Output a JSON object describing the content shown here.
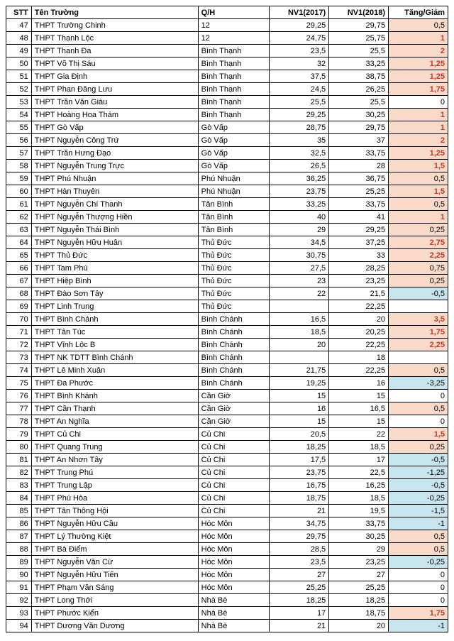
{
  "columns": [
    "STT",
    "Tên Trường",
    "Q/H",
    "NV1(2017)",
    "NV1(2018)",
    "Tăng/Giảm"
  ],
  "colors": {
    "orange_bg": "#f9d9c8",
    "blue_bg": "#c8e4ec",
    "bold_positive": "#c0392b"
  },
  "rows": [
    {
      "stt": 47,
      "name": "THPT Trường Chinh",
      "qh": "12",
      "nv1": "29,25",
      "nv2": "29,75",
      "diff": "0,5",
      "bg": "orange",
      "bold": false
    },
    {
      "stt": 48,
      "name": "THPT Thạnh Lộc",
      "qh": "12",
      "nv1": "24,75",
      "nv2": "25,75",
      "diff": "1",
      "bg": "orange",
      "bold": true
    },
    {
      "stt": 49,
      "name": "THPT Thanh Đa",
      "qh": "Bình Thạnh",
      "nv1": "23,5",
      "nv2": "25,5",
      "diff": "2",
      "bg": "orange",
      "bold": true
    },
    {
      "stt": 50,
      "name": "THPT Võ Thị Sáu",
      "qh": "Bình Thạnh",
      "nv1": "32",
      "nv2": "33,25",
      "diff": "1,25",
      "bg": "orange",
      "bold": true
    },
    {
      "stt": 51,
      "name": "THPT Gia Định",
      "qh": "Bình Thạnh",
      "nv1": "37,5",
      "nv2": "38,75",
      "diff": "1,25",
      "bg": "orange",
      "bold": true
    },
    {
      "stt": 52,
      "name": "THPT Phan Đăng Lưu",
      "qh": "Bình Thạnh",
      "nv1": "24,5",
      "nv2": "26,25",
      "diff": "1,75",
      "bg": "orange",
      "bold": true
    },
    {
      "stt": 53,
      "name": "THPT Trần Văn Giàu",
      "qh": "Bình Thạnh",
      "nv1": "25,5",
      "nv2": "25,5",
      "diff": "0",
      "bg": "",
      "bold": false
    },
    {
      "stt": 54,
      "name": "THPT Hoàng Hoa Thám",
      "qh": "Bình Thạnh",
      "nv1": "29,25",
      "nv2": "30,25",
      "diff": "1",
      "bg": "orange",
      "bold": true
    },
    {
      "stt": 55,
      "name": "THPT Gò Vấp",
      "qh": "Gò Vấp",
      "nv1": "28,75",
      "nv2": "29,75",
      "diff": "1",
      "bg": "orange",
      "bold": true
    },
    {
      "stt": 56,
      "name": "THPT Nguyễn Công Trứ",
      "qh": "Gò Vấp",
      "nv1": "35",
      "nv2": "37",
      "diff": "2",
      "bg": "orange",
      "bold": true
    },
    {
      "stt": 57,
      "name": "THPT Trần Hưng Đạo",
      "qh": "Gò Vấp",
      "nv1": "32,5",
      "nv2": "33,75",
      "diff": "1,25",
      "bg": "orange",
      "bold": true
    },
    {
      "stt": 58,
      "name": "THPT Nguyễn Trung Trực",
      "qh": "Gò Vấp",
      "nv1": "26,5",
      "nv2": "28",
      "diff": "1,5",
      "bg": "orange",
      "bold": true
    },
    {
      "stt": 59,
      "name": "THPT Phú Nhuận",
      "qh": "Phú Nhuận",
      "nv1": "36,25",
      "nv2": "36,75",
      "diff": "0,5",
      "bg": "orange",
      "bold": false
    },
    {
      "stt": 60,
      "name": "THPT Hàn Thuyên",
      "qh": "Phú Nhuận",
      "nv1": "23,75",
      "nv2": "25,25",
      "diff": "1,5",
      "bg": "orange",
      "bold": true
    },
    {
      "stt": 61,
      "name": "THPT Nguyễn Chí Thanh",
      "qh": "Tân Bình",
      "nv1": "33,25",
      "nv2": "33,75",
      "diff": "0,5",
      "bg": "orange",
      "bold": false
    },
    {
      "stt": 62,
      "name": "THPT Nguyễn Thượng Hiền",
      "qh": "Tân Bình",
      "nv1": "40",
      "nv2": "41",
      "diff": "1",
      "bg": "orange",
      "bold": true
    },
    {
      "stt": 63,
      "name": "THPT Nguyễn Thái Bình",
      "qh": "Tân Bình",
      "nv1": "29",
      "nv2": "29,25",
      "diff": "0,25",
      "bg": "orange",
      "bold": false
    },
    {
      "stt": 64,
      "name": "THPT Nguyễn Hữu Huân",
      "qh": "Thủ Đức",
      "nv1": "34,5",
      "nv2": "37,25",
      "diff": "2,75",
      "bg": "orange",
      "bold": true
    },
    {
      "stt": 65,
      "name": "THPT Thủ Đức",
      "qh": "Thủ Đức",
      "nv1": "30,75",
      "nv2": "33",
      "diff": "2,25",
      "bg": "orange",
      "bold": true
    },
    {
      "stt": 66,
      "name": "THPT Tam Phú",
      "qh": "Thủ Đức",
      "nv1": "27,5",
      "nv2": "28,25",
      "diff": "0,75",
      "bg": "orange",
      "bold": false
    },
    {
      "stt": 67,
      "name": "THPT Hiệp Bình",
      "qh": "Thủ Đức",
      "nv1": "23",
      "nv2": "23,25",
      "diff": "0,25",
      "bg": "orange",
      "bold": false
    },
    {
      "stt": 68,
      "name": "THPT Đào Sơn Tây",
      "qh": "Thủ Đức",
      "nv1": "22",
      "nv2": "21,5",
      "diff": "-0,5",
      "bg": "blue",
      "bold": false
    },
    {
      "stt": 69,
      "name": "THPT Linh Trung",
      "qh": "Thủ Đức",
      "nv1": "",
      "nv2": "22,25",
      "diff": "",
      "bg": "",
      "bold": false
    },
    {
      "stt": 70,
      "name": "THPT Bình Chánh",
      "qh": "Bình Chánh",
      "nv1": "16,5",
      "nv2": "20",
      "diff": "3,5",
      "bg": "orange",
      "bold": true
    },
    {
      "stt": 71,
      "name": "THPT Tân Túc",
      "qh": "Bình Chánh",
      "nv1": "18,5",
      "nv2": "20,25",
      "diff": "1,75",
      "bg": "orange",
      "bold": true
    },
    {
      "stt": 72,
      "name": "THPT Vĩnh Lộc B",
      "qh": "Bình Chánh",
      "nv1": "20",
      "nv2": "22,25",
      "diff": "2,25",
      "bg": "orange",
      "bold": true
    },
    {
      "stt": 73,
      "name": "THPT NK TDTT Bình Chánh",
      "qh": "Bình Chánh",
      "nv1": "",
      "nv2": "18",
      "diff": "",
      "bg": "",
      "bold": false
    },
    {
      "stt": 74,
      "name": "THPT Lê Minh Xuân",
      "qh": "Bình Chánh",
      "nv1": "21,75",
      "nv2": "22,25",
      "diff": "0,5",
      "bg": "orange",
      "bold": false
    },
    {
      "stt": 75,
      "name": "THPT Đa Phước",
      "qh": "Bình Chánh",
      "nv1": "19,25",
      "nv2": "16",
      "diff": "-3,25",
      "bg": "blue",
      "bold": false
    },
    {
      "stt": 76,
      "name": "THPT Bình Khánh",
      "qh": "Cần Giờ",
      "nv1": "15",
      "nv2": "15",
      "diff": "0",
      "bg": "",
      "bold": false
    },
    {
      "stt": 77,
      "name": "THPT Cần Thạnh",
      "qh": "Cần Giờ",
      "nv1": "16",
      "nv2": "16,5",
      "diff": "0,5",
      "bg": "orange",
      "bold": false
    },
    {
      "stt": 78,
      "name": "THPT An Nghĩa",
      "qh": "Cần Giờ",
      "nv1": "15",
      "nv2": "15",
      "diff": "0",
      "bg": "",
      "bold": false
    },
    {
      "stt": 79,
      "name": "THPT Củ Chi",
      "qh": "Củ Chi",
      "nv1": "20,5",
      "nv2": "22",
      "diff": "1,5",
      "bg": "orange",
      "bold": true
    },
    {
      "stt": 80,
      "name": "THPT Quang Trung",
      "qh": "Củ Chi",
      "nv1": "18,25",
      "nv2": "18,5",
      "diff": "0,25",
      "bg": "orange",
      "bold": false
    },
    {
      "stt": 81,
      "name": "THPT An Nhơn Tây",
      "qh": "Củ Chi",
      "nv1": "17,5",
      "nv2": "17",
      "diff": "-0,5",
      "bg": "blue",
      "bold": false
    },
    {
      "stt": 82,
      "name": "THPT Trung Phú",
      "qh": "Củ Chi",
      "nv1": "23,75",
      "nv2": "22,5",
      "diff": "-1,25",
      "bg": "blue",
      "bold": false
    },
    {
      "stt": 83,
      "name": "THPT Trung Lập",
      "qh": "Củ Chi",
      "nv1": "16,75",
      "nv2": "16,25",
      "diff": "-0,5",
      "bg": "blue",
      "bold": false
    },
    {
      "stt": 84,
      "name": "THPT Phú Hòa",
      "qh": "Củ Chi",
      "nv1": "18,75",
      "nv2": "18,5",
      "diff": "-0,25",
      "bg": "blue",
      "bold": false
    },
    {
      "stt": 85,
      "name": "THPT Tân Thông Hội",
      "qh": "Củ Chi",
      "nv1": "21",
      "nv2": "19,5",
      "diff": "-1,5",
      "bg": "blue",
      "bold": false
    },
    {
      "stt": 86,
      "name": "THPT Nguyễn Hữu Cầu",
      "qh": "Hóc Môn",
      "nv1": "34,75",
      "nv2": "33,75",
      "diff": "-1",
      "bg": "blue",
      "bold": false
    },
    {
      "stt": 87,
      "name": "THPT Lý Thường Kiệt",
      "qh": "Hóc Môn",
      "nv1": "29,75",
      "nv2": "30,25",
      "diff": "0,5",
      "bg": "orange",
      "bold": false
    },
    {
      "stt": 88,
      "name": "THPT Bà Điểm",
      "qh": "Hóc Môn",
      "nv1": "28,5",
      "nv2": "29",
      "diff": "0,5",
      "bg": "orange",
      "bold": false
    },
    {
      "stt": 89,
      "name": "THPT Nguyễn Văn Cừ",
      "qh": "Hóc Môn",
      "nv1": "23,5",
      "nv2": "23,25",
      "diff": "-0,25",
      "bg": "blue",
      "bold": false
    },
    {
      "stt": 90,
      "name": "THPT Nguyễn Hữu Tiến",
      "qh": "Hóc Môn",
      "nv1": "27",
      "nv2": "27",
      "diff": "0",
      "bg": "",
      "bold": false
    },
    {
      "stt": 91,
      "name": "THPT Phạm Văn Sáng",
      "qh": "Hóc Môn",
      "nv1": "25,25",
      "nv2": "25,25",
      "diff": "0",
      "bg": "",
      "bold": false
    },
    {
      "stt": 92,
      "name": "THPT Long Thới",
      "qh": "Nhà Bè",
      "nv1": "18,25",
      "nv2": "18,25",
      "diff": "0",
      "bg": "",
      "bold": false
    },
    {
      "stt": 93,
      "name": "THPT Phước Kiển",
      "qh": "Nhà Bè",
      "nv1": "17",
      "nv2": "18,75",
      "diff": "1,75",
      "bg": "orange",
      "bold": true
    },
    {
      "stt": 94,
      "name": "THPT Dương Văn Dương",
      "qh": "Nhà Bè",
      "nv1": "21",
      "nv2": "20",
      "diff": "-1",
      "bg": "blue",
      "bold": false
    }
  ]
}
